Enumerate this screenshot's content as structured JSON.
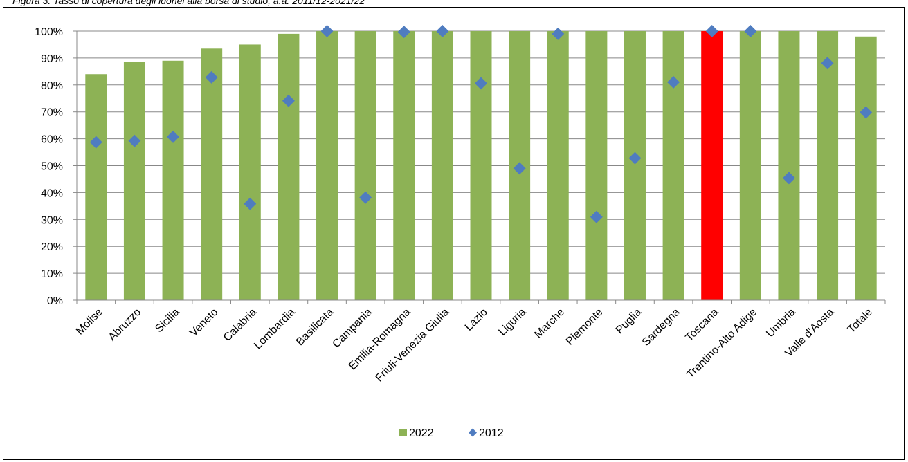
{
  "caption": "Figura 3. Tasso di copertura degli idonei alla borsa di studio, a.a. 2011/12-2021/22",
  "chart_data": {
    "type": "bar",
    "categories": [
      "Molise",
      "Abruzzo",
      "Sicilia",
      "Veneto",
      "Calabria",
      "Lombardia",
      "Basilicata",
      "Campania",
      "Emilia-Romagna",
      "Friuli-Venezia Giulia",
      "Lazio",
      "Liguria",
      "Marche",
      "Piemonte",
      "Puglia",
      "Sardegna",
      "Toscana",
      "Trentino-Alto Adige",
      "Umbria",
      "Valle d'Aosta",
      "Totale"
    ],
    "series": [
      {
        "name": "2022",
        "type": "bar",
        "color": "#8db255",
        "values": [
          84,
          88.5,
          89,
          93.5,
          95,
          99,
          100,
          100,
          100,
          100,
          100,
          100,
          100,
          100,
          100,
          100,
          100,
          100,
          100,
          100,
          98
        ]
      },
      {
        "name": "2012",
        "type": "scatter",
        "marker": "diamond",
        "color": "#4f7cc0",
        "values": [
          58.7,
          59.2,
          60.7,
          82.8,
          35.8,
          74.1,
          100,
          38.1,
          99.7,
          100,
          80.6,
          49,
          99,
          30.9,
          52.8,
          81,
          100,
          100,
          45.4,
          88.1,
          69.8
        ]
      }
    ],
    "highlight": {
      "category": "Toscana",
      "color": "#ff0000"
    },
    "ylim": [
      0,
      100
    ],
    "yticks": [
      "0%",
      "10%",
      "20%",
      "30%",
      "40%",
      "50%",
      "60%",
      "70%",
      "80%",
      "90%",
      "100%"
    ],
    "grid": true,
    "legend_position": "bottom-center",
    "xlabel": "",
    "ylabel": ""
  }
}
